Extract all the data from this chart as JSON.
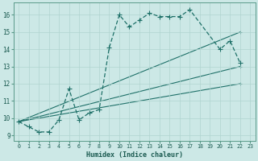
{
  "title": "",
  "xlabel": "Humidex (Indice chaleur)",
  "ylabel": "",
  "xlim": [
    -0.5,
    23.5
  ],
  "ylim": [
    8.7,
    16.7
  ],
  "yticks": [
    9,
    10,
    11,
    12,
    13,
    14,
    15,
    16
  ],
  "xticks": [
    0,
    1,
    2,
    3,
    4,
    5,
    6,
    7,
    8,
    9,
    10,
    11,
    12,
    13,
    14,
    15,
    16,
    17,
    18,
    19,
    20,
    21,
    22,
    23
  ],
  "background_color": "#cce8e6",
  "line_color": "#1e7068",
  "grid_color": "#b0d4d0",
  "main_line": {
    "x": [
      0,
      1,
      2,
      3,
      4,
      5,
      6,
      7,
      8,
      9,
      10,
      11,
      12,
      13,
      14,
      15,
      16,
      17,
      20,
      21,
      22
    ],
    "y": [
      9.8,
      9.5,
      9.2,
      9.2,
      9.9,
      11.7,
      9.9,
      10.3,
      10.5,
      14.1,
      16.0,
      15.3,
      15.7,
      16.1,
      15.9,
      15.9,
      15.9,
      16.3,
      14.0,
      14.5,
      13.2
    ]
  },
  "straight_lines": [
    {
      "x": [
        0,
        22
      ],
      "y": [
        9.8,
        13.0
      ]
    },
    {
      "x": [
        0,
        22
      ],
      "y": [
        9.8,
        12.0
      ]
    },
    {
      "x": [
        0,
        22
      ],
      "y": [
        9.8,
        15.0
      ]
    }
  ]
}
